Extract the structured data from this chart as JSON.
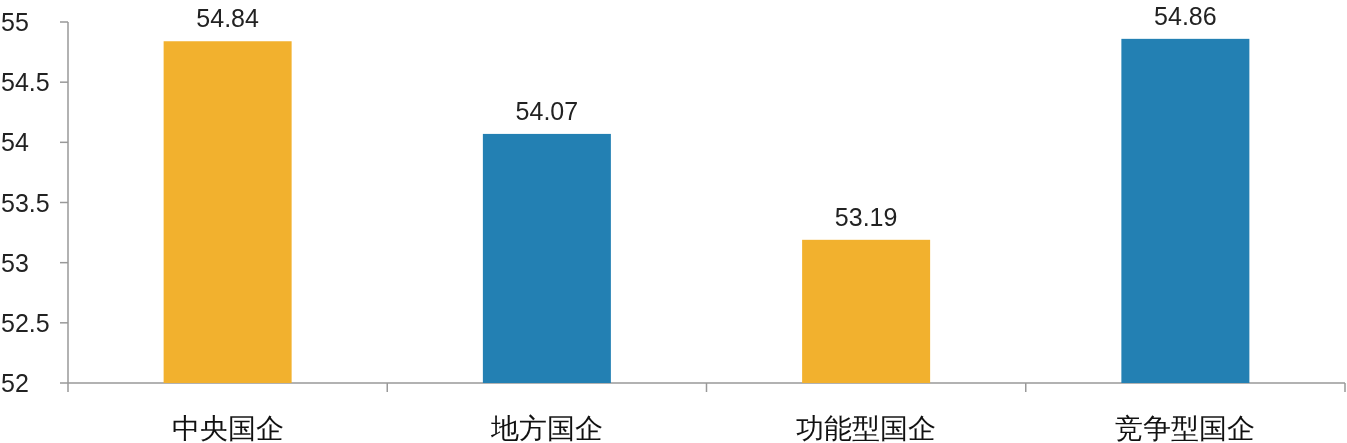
{
  "chart_data": {
    "type": "bar",
    "categories": [
      "中央国企",
      "地方国企",
      "功能型国企",
      "竞争型国企"
    ],
    "values": [
      54.84,
      54.07,
      53.19,
      54.86
    ],
    "colors": [
      "#f2b12e",
      "#2380b3",
      "#f2b12e",
      "#2380b3"
    ],
    "ylim": [
      52,
      55
    ],
    "yticks": [
      52,
      52.5,
      53,
      53.5,
      54,
      54.5,
      55
    ],
    "data_labels": true
  }
}
